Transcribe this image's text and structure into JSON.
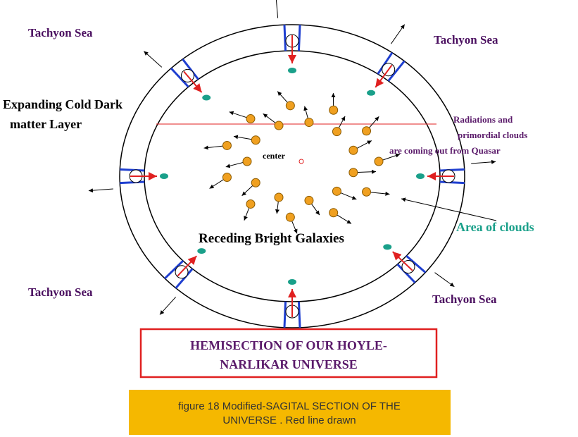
{
  "labels": {
    "tachyon_top_left": "Tachyon Sea",
    "tachyon_top_right": "Tachyon Sea",
    "tachyon_bottom_left": "Tachyon Sea",
    "tachyon_bottom_right": "Tachyon Sea",
    "dark_matter": [
      "Expanding Cold Dark",
      "matter Layer"
    ],
    "radiations": [
      "Radiations and",
      "primordial clouds",
      "are coming out from Quasar"
    ],
    "center": "center",
    "clouds": "Area of clouds",
    "galaxies": "Receding Bright Galaxies"
  },
  "title_box": [
    "HEMISECTION OF OUR  HOYLE-",
    "NARLIKAR UNIVERSE"
  ],
  "caption": [
    "figure 18  Modified-SAGITAL SECTION OF THE",
    "UNIVERSE . Red line drawn"
  ]
}
